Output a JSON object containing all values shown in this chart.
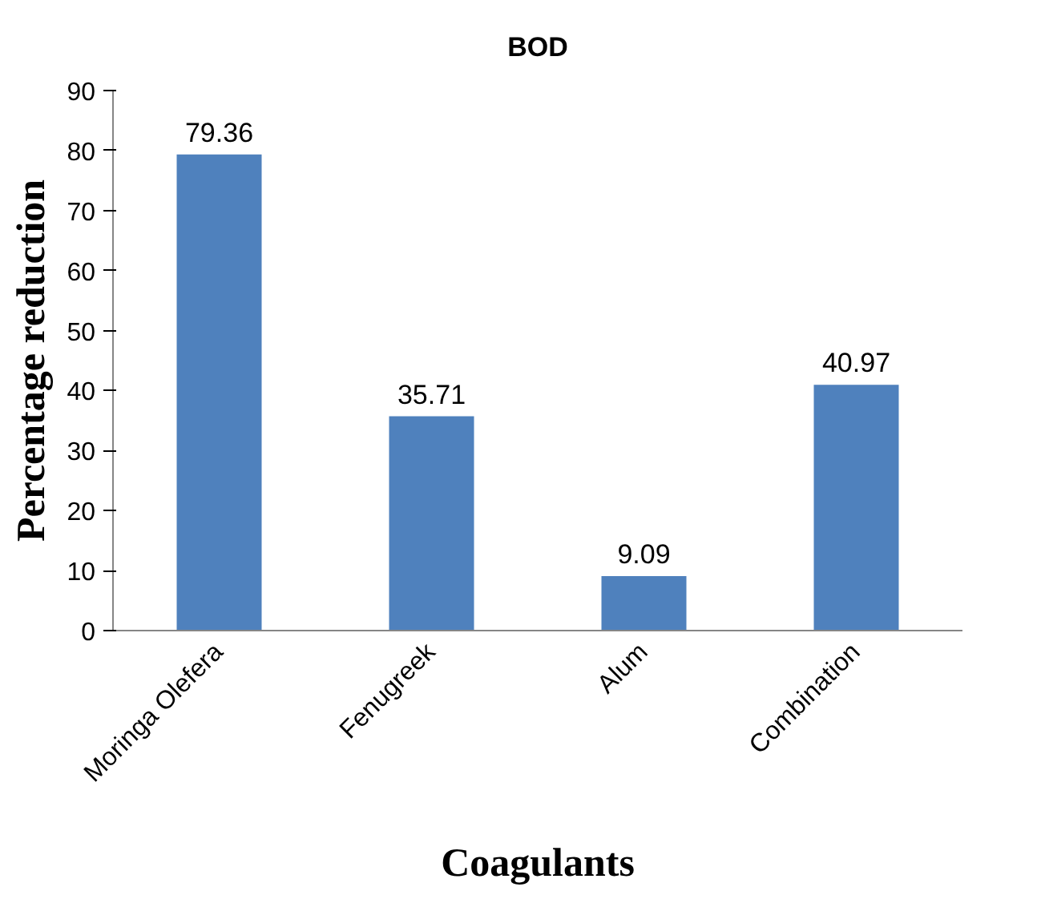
{
  "chart_data": {
    "type": "bar",
    "title": "BOD",
    "xlabel": "Coagulants",
    "ylabel": "Percentage reduction",
    "categories": [
      "Moringa Olefera",
      "Fenugreek",
      "Alum",
      "Combination"
    ],
    "values": [
      79.36,
      35.71,
      9.09,
      40.97
    ],
    "color": "#4f81bd",
    "ylim": [
      0,
      90
    ],
    "yticks": [
      0,
      10,
      20,
      30,
      40,
      50,
      60,
      70,
      80,
      90
    ],
    "data_labels": true,
    "grid": false
  }
}
